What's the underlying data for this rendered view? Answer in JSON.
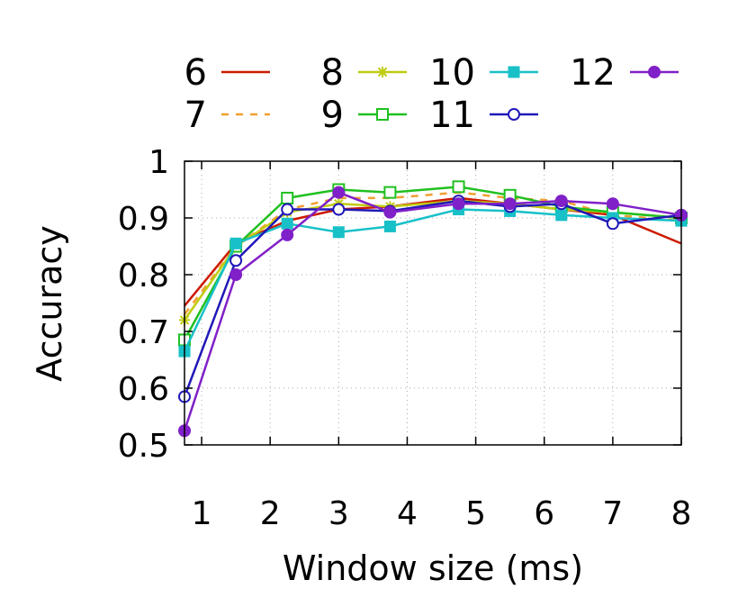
{
  "chart_data": {
    "type": "line",
    "xlabel": "Window size (ms)",
    "ylabel": "Accuracy",
    "xlim": [
      0.75,
      8
    ],
    "ylim": [
      0.5,
      1
    ],
    "xticks": [
      "1",
      "2",
      "3",
      "4",
      "5",
      "6",
      "7",
      "8"
    ],
    "yticks": [
      "0.5",
      "0.6",
      "0.7",
      "0.8",
      "0.9",
      "1"
    ],
    "grid": true,
    "legend_placement": "top",
    "x": [
      0.75,
      1.5,
      2.25,
      3.0,
      3.75,
      4.75,
      5.5,
      6.25,
      7.0,
      8.0
    ],
    "series": [
      {
        "name": "6",
        "color": "#cc1a00",
        "dash": "solid",
        "marker": "none",
        "values": [
          0.745,
          0.855,
          0.895,
          0.915,
          0.92,
          0.935,
          0.925,
          0.915,
          0.905,
          0.855
        ]
      },
      {
        "name": "7",
        "color": "#f0a030",
        "dash": "dash",
        "marker": "none",
        "values": [
          0.73,
          0.85,
          0.915,
          0.935,
          0.935,
          0.945,
          0.935,
          0.93,
          0.905,
          0.895
        ]
      },
      {
        "name": "8",
        "color": "#c0cc10",
        "dash": "solid",
        "marker": "star",
        "values": [
          0.72,
          0.85,
          0.91,
          0.925,
          0.92,
          0.93,
          0.925,
          0.915,
          0.91,
          0.9
        ]
      },
      {
        "name": "9",
        "color": "#20c020",
        "dash": "solid",
        "marker": "open-square",
        "values": [
          0.685,
          0.85,
          0.935,
          0.95,
          0.945,
          0.955,
          0.94,
          0.92,
          0.91,
          0.9
        ]
      },
      {
        "name": "10",
        "color": "#18c0c8",
        "dash": "solid",
        "marker": "filled-square",
        "values": [
          0.665,
          0.855,
          0.89,
          0.875,
          0.885,
          0.915,
          0.912,
          0.905,
          0.9,
          0.895
        ]
      },
      {
        "name": "11",
        "color": "#2018b8",
        "dash": "solid",
        "marker": "open-circle",
        "values": [
          0.585,
          0.825,
          0.915,
          0.915,
          0.912,
          0.93,
          0.92,
          0.925,
          0.89,
          0.905
        ]
      },
      {
        "name": "12",
        "color": "#8020c8",
        "dash": "solid",
        "marker": "filled-circle",
        "values": [
          0.525,
          0.8,
          0.87,
          0.945,
          0.91,
          0.925,
          0.925,
          0.93,
          0.925,
          0.905
        ]
      }
    ]
  }
}
